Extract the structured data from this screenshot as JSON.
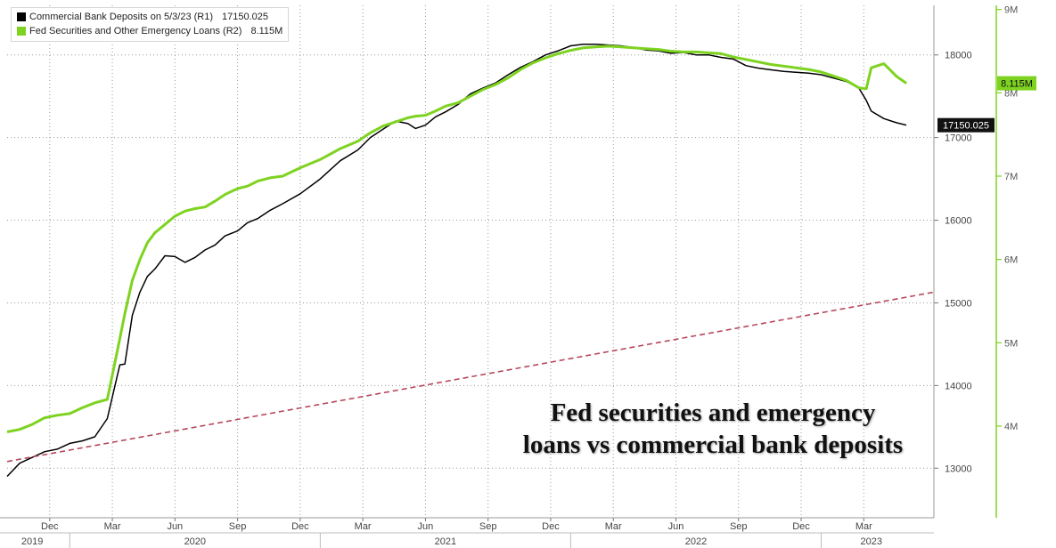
{
  "chart_data": {
    "type": "line",
    "title": "",
    "xlabel": "",
    "legend_position": "top-left",
    "grid": true,
    "x_start": "2019-10",
    "x_end": "2023-05",
    "annotation": [
      "Fed securities and emergency",
      "loans vs commercial bank deposits"
    ],
    "x_month_ticks": [
      {
        "label": "Dec",
        "t": 2019.92
      },
      {
        "label": "Mar",
        "t": 2020.17
      },
      {
        "label": "Jun",
        "t": 2020.42
      },
      {
        "label": "Sep",
        "t": 2020.67
      },
      {
        "label": "Dec",
        "t": 2020.92
      },
      {
        "label": "Mar",
        "t": 2021.17
      },
      {
        "label": "Jun",
        "t": 2021.42
      },
      {
        "label": "Sep",
        "t": 2021.67
      },
      {
        "label": "Dec",
        "t": 2021.92
      },
      {
        "label": "Mar",
        "t": 2022.17
      },
      {
        "label": "Jun",
        "t": 2022.42
      },
      {
        "label": "Sep",
        "t": 2022.67
      },
      {
        "label": "Dec",
        "t": 2022.92
      },
      {
        "label": "Mar",
        "t": 2023.17
      }
    ],
    "x_year_ticks": [
      {
        "label": "2019",
        "t": 2019.85
      },
      {
        "label": "2020",
        "t": 2020.5
      },
      {
        "label": "2021",
        "t": 2021.5
      },
      {
        "label": "2022",
        "t": 2022.5
      },
      {
        "label": "2023",
        "t": 2023.2
      }
    ],
    "y_left": {
      "ylim": [
        12400,
        18600
      ],
      "ticks": [
        13000,
        14000,
        15000,
        16000,
        17000,
        18000
      ],
      "tick_labels": [
        "13000",
        "14000",
        "15000",
        "16000",
        "17000",
        "18000"
      ]
    },
    "y_right": {
      "ylim": [
        2.9,
        9.05
      ],
      "ticks": [
        4,
        5,
        6,
        7,
        8,
        9
      ],
      "tick_labels": [
        "4M",
        "5M",
        "6M",
        "7M",
        "8M",
        "9M"
      ]
    },
    "series": [
      {
        "name": "Commercial Bank Deposits on 5/3/23 (R1)",
        "last_value": "17150.025",
        "color": "#000000",
        "axis": "left",
        "x": [
          2019.75,
          2019.8,
          2019.85,
          2019.9,
          2019.95,
          2020.0,
          2020.05,
          2020.1,
          2020.15,
          2020.2,
          2020.22,
          2020.25,
          2020.28,
          2020.31,
          2020.34,
          2020.38,
          2020.42,
          2020.46,
          2020.5,
          2020.54,
          2020.58,
          2020.62,
          2020.67,
          2020.71,
          2020.75,
          2020.8,
          2020.85,
          2020.92,
          2021.0,
          2021.08,
          2021.15,
          2021.2,
          2021.25,
          2021.3,
          2021.35,
          2021.38,
          2021.42,
          2021.46,
          2021.5,
          2021.55,
          2021.6,
          2021.65,
          2021.7,
          2021.75,
          2021.8,
          2021.85,
          2021.9,
          2021.95,
          2022.0,
          2022.05,
          2022.1,
          2022.15,
          2022.2,
          2022.25,
          2022.3,
          2022.35,
          2022.4,
          2022.45,
          2022.5,
          2022.55,
          2022.6,
          2022.65,
          2022.7,
          2022.75,
          2022.8,
          2022.85,
          2022.9,
          2022.95,
          2023.0,
          2023.05,
          2023.1,
          2023.15,
          2023.18,
          2023.2,
          2023.25,
          2023.3,
          2023.34
        ],
        "values": [
          12900,
          13060,
          13130,
          13200,
          13230,
          13300,
          13330,
          13380,
          13600,
          14250,
          14260,
          14850,
          15130,
          15320,
          15410,
          15570,
          15560,
          15490,
          15550,
          15640,
          15700,
          15810,
          15870,
          15970,
          16020,
          16120,
          16200,
          16320,
          16500,
          16720,
          16850,
          17000,
          17100,
          17200,
          17170,
          17110,
          17150,
          17250,
          17310,
          17400,
          17530,
          17600,
          17660,
          17760,
          17850,
          17920,
          18000,
          18050,
          18110,
          18130,
          18130,
          18120,
          18110,
          18090,
          18060,
          18050,
          18020,
          18030,
          18000,
          18000,
          17970,
          17950,
          17870,
          17840,
          17820,
          17800,
          17790,
          17780,
          17760,
          17720,
          17680,
          17600,
          17450,
          17320,
          17230,
          17180,
          17150
        ]
      },
      {
        "name": "Fed Securities and Other Emergency Loans (R2)",
        "last_value": "8.115M",
        "color": "#7ed321",
        "axis": "right",
        "x": [
          2019.75,
          2019.8,
          2019.85,
          2019.9,
          2019.95,
          2020.0,
          2020.05,
          2020.1,
          2020.15,
          2020.2,
          2020.22,
          2020.25,
          2020.28,
          2020.31,
          2020.34,
          2020.38,
          2020.42,
          2020.46,
          2020.5,
          2020.54,
          2020.58,
          2020.62,
          2020.67,
          2020.71,
          2020.75,
          2020.8,
          2020.85,
          2020.92,
          2021.0,
          2021.08,
          2021.15,
          2021.2,
          2021.25,
          2021.3,
          2021.35,
          2021.38,
          2021.42,
          2021.46,
          2021.5,
          2021.55,
          2021.6,
          2021.65,
          2021.7,
          2021.75,
          2021.8,
          2021.85,
          2021.9,
          2021.95,
          2022.0,
          2022.05,
          2022.1,
          2022.15,
          2022.2,
          2022.25,
          2022.3,
          2022.35,
          2022.4,
          2022.45,
          2022.5,
          2022.55,
          2022.6,
          2022.65,
          2022.7,
          2022.75,
          2022.8,
          2022.85,
          2022.9,
          2022.95,
          2023.0,
          2023.05,
          2023.1,
          2023.15,
          2023.18,
          2023.2,
          2023.25,
          2023.3,
          2023.34
        ],
        "values": [
          3.93,
          3.96,
          4.02,
          4.1,
          4.13,
          4.15,
          4.22,
          4.28,
          4.32,
          5.05,
          5.35,
          5.75,
          6.0,
          6.2,
          6.32,
          6.42,
          6.52,
          6.58,
          6.61,
          6.63,
          6.7,
          6.78,
          6.85,
          6.88,
          6.94,
          6.98,
          7.0,
          7.1,
          7.2,
          7.33,
          7.42,
          7.52,
          7.6,
          7.65,
          7.7,
          7.72,
          7.73,
          7.78,
          7.84,
          7.88,
          7.96,
          8.04,
          8.1,
          8.18,
          8.28,
          8.36,
          8.42,
          8.47,
          8.51,
          8.54,
          8.55,
          8.56,
          8.55,
          8.54,
          8.53,
          8.52,
          8.5,
          8.49,
          8.49,
          8.48,
          8.47,
          8.43,
          8.4,
          8.37,
          8.34,
          8.32,
          8.3,
          8.28,
          8.25,
          8.2,
          8.15,
          8.06,
          8.05,
          8.3,
          8.35,
          8.2,
          8.115
        ]
      },
      {
        "name": "",
        "color": "#b5475a",
        "style": "dashed",
        "axis": "left",
        "x": [
          2019.75,
          2023.45
        ],
        "values": [
          13080,
          15130
        ]
      }
    ]
  }
}
